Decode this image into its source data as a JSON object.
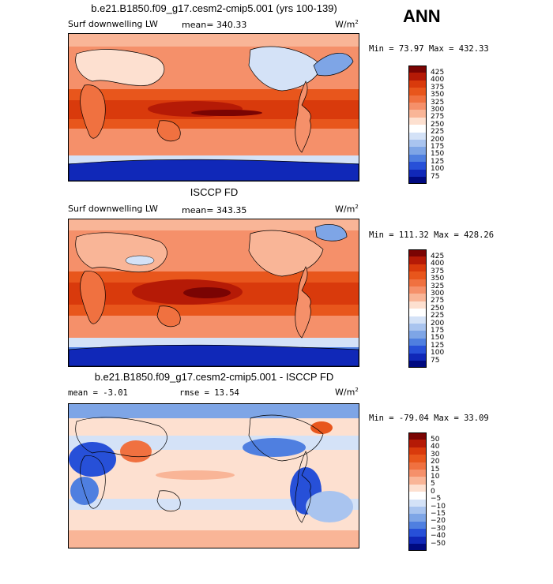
{
  "season": "ANN",
  "panels": [
    {
      "title": "b.e21.B1850.f09_g17.cesm2-cmip5.001 (yrs 100-139)",
      "variable": "Surf downwelling LW",
      "left_stat": "",
      "mean": "mean= 340.33",
      "units": "W/m",
      "units_exp": "2",
      "minmax": "Min =  73.97 Max = 432.33",
      "palette": "abs"
    },
    {
      "title": "ISCCP FD",
      "variable": "Surf downwelling LW",
      "left_stat": "",
      "mean": "mean= 343.35",
      "units": "W/m",
      "units_exp": "2",
      "minmax": "Min = 111.32 Max = 428.26",
      "palette": "abs"
    },
    {
      "title": "b.e21.B1850.f09_g17.cesm2-cmip5.001 - ISCCP FD",
      "variable": "",
      "left_stat": "mean =  -3.01",
      "mean": "rmse =  13.54",
      "units": "W/m",
      "units_exp": "2",
      "minmax": "Min = -79.04 Max =  33.09",
      "palette": "diff"
    }
  ],
  "colorbars": {
    "abs": {
      "labels": [
        "425",
        "400",
        "375",
        "350",
        "325",
        "300",
        "275",
        "250",
        "225",
        "200",
        "175",
        "150",
        "125",
        "100",
        "75"
      ],
      "colors": [
        "#7a0403",
        "#b51a06",
        "#d93a0c",
        "#e8561c",
        "#f07140",
        "#f5906a",
        "#f9b597",
        "#fde0d0",
        "#ffffff",
        "#d4e2f7",
        "#a9c4ef",
        "#7ea5e6",
        "#4f7fe0",
        "#2750d8",
        "#1028b8",
        "#000a80"
      ]
    },
    "diff": {
      "labels": [
        "50",
        "40",
        "30",
        "20",
        "15",
        "10",
        "5",
        "0",
        "−5",
        "−10",
        "−15",
        "−20",
        "−30",
        "−40",
        "−50"
      ],
      "colors": [
        "#7a0403",
        "#b51a06",
        "#d93a0c",
        "#e8561c",
        "#f07140",
        "#f5906a",
        "#f9b597",
        "#fde0d0",
        "#ffffff",
        "#d4e2f7",
        "#a9c4ef",
        "#7ea5e6",
        "#4f7fe0",
        "#2750d8",
        "#1028b8",
        "#000a80"
      ]
    }
  },
  "chart_data": [
    {
      "type": "heatmap",
      "title": "b.e21.B1850.f09_g17.cesm2-cmip5.001 (yrs 100-139)",
      "subtitle": "Surf downwelling LW",
      "units": "W/m2",
      "mean": 340.33,
      "min": 73.97,
      "max": 432.33,
      "levels": [
        75,
        100,
        125,
        150,
        175,
        200,
        225,
        250,
        275,
        300,
        325,
        350,
        375,
        400,
        425
      ]
    },
    {
      "type": "heatmap",
      "title": "ISCCP FD",
      "subtitle": "Surf downwelling LW",
      "units": "W/m2",
      "mean": 343.35,
      "min": 111.32,
      "max": 428.26,
      "levels": [
        75,
        100,
        125,
        150,
        175,
        200,
        225,
        250,
        275,
        300,
        325,
        350,
        375,
        400,
        425
      ]
    },
    {
      "type": "heatmap",
      "title": "b.e21.B1850.f09_g17.cesm2-cmip5.001 - ISCCP FD",
      "units": "W/m2",
      "mean": -3.01,
      "rmse": 13.54,
      "min": -79.04,
      "max": 33.09,
      "levels": [
        -50,
        -40,
        -30,
        -20,
        -15,
        -10,
        -5,
        0,
        5,
        10,
        15,
        20,
        30,
        40,
        50
      ]
    }
  ]
}
